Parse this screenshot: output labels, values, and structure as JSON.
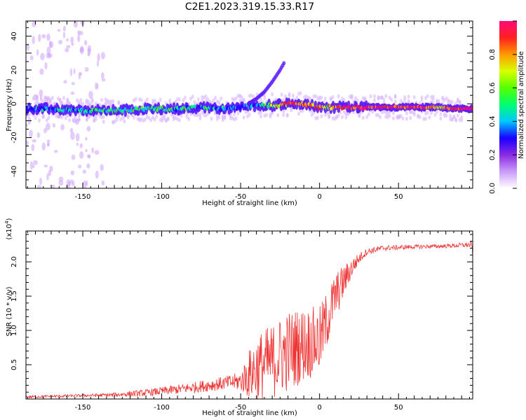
{
  "title": "C2E1.2023.319.15.33.R17",
  "chart_data": [
    {
      "type": "heatmap",
      "xlabel": "Height of straight line (km)",
      "ylabel": "Frequency (Hz)",
      "xlim": [
        -186,
        97
      ],
      "ylim": [
        -50,
        49
      ],
      "xticks": [
        -150,
        -100,
        -50,
        0,
        50
      ],
      "yticks": [
        -40,
        -20,
        0,
        20,
        40
      ],
      "ridge_x": [
        -186,
        -170,
        -150,
        -130,
        -110,
        -90,
        -70,
        -60,
        -50,
        -40,
        -30,
        -20,
        -10,
        0,
        10,
        20,
        40,
        60,
        75,
        85,
        95
      ],
      "ridge_frequency": [
        -3,
        -3,
        -4,
        -4,
        -3,
        -3,
        -2,
        -3,
        -2,
        -1,
        -1,
        0,
        0,
        -2,
        -2,
        -2,
        -2,
        -2,
        -2,
        -3,
        -3
      ],
      "ridge_amplitude": [
        0.3,
        0.35,
        0.4,
        0.5,
        0.5,
        0.45,
        0.45,
        0.3,
        0.3,
        0.4,
        0.6,
        0.85,
        0.9,
        0.7,
        0.8,
        0.95,
        0.97,
        0.95,
        0.7,
        0.95,
        0.97
      ],
      "branch_x": [
        -45,
        -40,
        -35,
        -30,
        -25,
        -22
      ],
      "branch_frequency": [
        0,
        3,
        7,
        13,
        20,
        25
      ]
    },
    {
      "type": "line",
      "xlabel": "Height of straight line (km)",
      "ylabel": "SNR (10 * v/v)",
      "y_scale_label": "(x10",
      "y_scale_exp": "4",
      "y_scale_close": ")",
      "xlim": [
        -186,
        97
      ],
      "ylim": [
        0,
        2.45
      ],
      "xticks": [
        -150,
        -100,
        -50,
        0,
        50
      ],
      "yticks": [
        0.5,
        1.0,
        1.5,
        2.0
      ],
      "ytick_labels": [
        "0.5",
        "1.0",
        "1.5",
        "2.0"
      ],
      "series": [
        {
          "color": "#ee3333",
          "envelope_x": [
            -186,
            -150,
            -130,
            -110,
            -90,
            -70,
            -60,
            -50,
            -45,
            -40,
            -30,
            -20,
            -10,
            0,
            10,
            20,
            25,
            30,
            40,
            60,
            80,
            95,
            97
          ],
          "envelope_mean": [
            0.03,
            0.05,
            0.06,
            0.09,
            0.14,
            0.2,
            0.23,
            0.26,
            0.35,
            0.45,
            0.55,
            0.7,
            0.8,
            0.85,
            1.5,
            1.9,
            2.05,
            2.15,
            2.2,
            2.22,
            2.23,
            2.25,
            2.2
          ],
          "envelope_spread": [
            0.02,
            0.02,
            0.03,
            0.05,
            0.07,
            0.09,
            0.1,
            0.14,
            0.35,
            0.5,
            0.55,
            0.6,
            0.55,
            0.5,
            0.35,
            0.15,
            0.08,
            0.05,
            0.04,
            0.03,
            0.03,
            0.04,
            0.12
          ]
        }
      ]
    }
  ],
  "colorbar": {
    "label": "Normalized spectral amplitude",
    "ticks": [
      0.0,
      0.2,
      0.4,
      0.6,
      0.8
    ],
    "tick_labels": [
      "0.0",
      "0.2",
      "0.4",
      "0.6",
      "0.8"
    ],
    "colors": [
      "#ffffff",
      "#c99cf8",
      "#8a2be2",
      "#1a00ff",
      "#00c8ff",
      "#00ff70",
      "#55ff00",
      "#d8ff00",
      "#ff9900",
      "#ff2020",
      "#ff0a78"
    ]
  }
}
